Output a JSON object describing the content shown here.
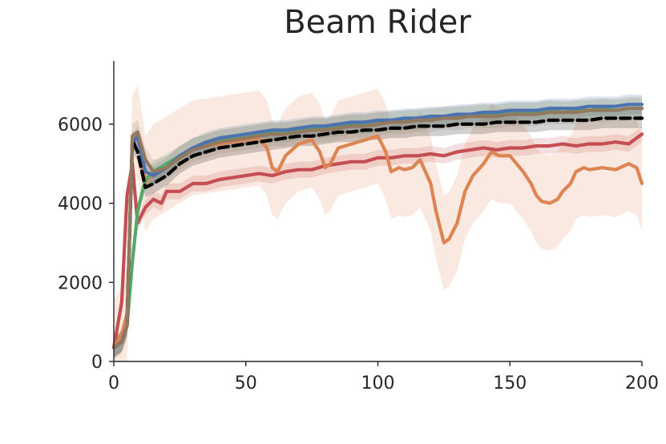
{
  "chart_data": {
    "type": "line",
    "title": "Beam Rider",
    "xlabel": "",
    "ylabel": "",
    "xlim": [
      0,
      200
    ],
    "ylim": [
      0,
      7600
    ],
    "x_ticks": [
      0,
      50,
      100,
      150,
      200
    ],
    "y_ticks": [
      0,
      2000,
      4000,
      6000
    ],
    "grid": false,
    "legend": "none",
    "series": [
      {
        "color": "#c44e52",
        "x": [
          0,
          3,
          5,
          7,
          9,
          12,
          15,
          18,
          20,
          25,
          30,
          35,
          40,
          45,
          50,
          55,
          60,
          65,
          70,
          75,
          80,
          85,
          90,
          95,
          100,
          105,
          110,
          115,
          120,
          125,
          130,
          135,
          140,
          145,
          150,
          155,
          160,
          165,
          170,
          175,
          180,
          185,
          190,
          195,
          200
        ],
        "y": [
          350,
          1500,
          4200,
          5000,
          3500,
          3900,
          4100,
          4000,
          4300,
          4300,
          4500,
          4500,
          4600,
          4650,
          4700,
          4750,
          4700,
          4800,
          4850,
          4850,
          4950,
          5000,
          5050,
          5050,
          5150,
          5150,
          5200,
          5200,
          5250,
          5200,
          5300,
          5350,
          5400,
          5350,
          5400,
          5400,
          5450,
          5450,
          5500,
          5450,
          5500,
          5500,
          5550,
          5500,
          5750
        ],
        "band": 200
      },
      {
        "color": "#dd8452",
        "x": [
          0,
          3,
          5,
          7,
          9,
          12,
          15,
          20,
          25,
          30,
          35,
          40,
          45,
          50,
          55,
          58,
          60,
          62,
          65,
          70,
          75,
          78,
          80,
          82,
          85,
          90,
          95,
          100,
          103,
          105,
          108,
          110,
          113,
          116,
          120,
          122,
          125,
          127,
          130,
          133,
          136,
          140,
          143,
          146,
          150,
          155,
          158,
          160,
          162,
          165,
          168,
          170,
          173,
          175,
          178,
          180,
          185,
          190,
          195,
          198,
          200
        ],
        "y": [
          350,
          700,
          1200,
          5500,
          5800,
          4500,
          4800,
          5000,
          5200,
          5400,
          5450,
          5500,
          5550,
          5600,
          5650,
          5400,
          4900,
          4800,
          5200,
          5500,
          5600,
          5300,
          4900,
          5000,
          5400,
          5500,
          5600,
          5700,
          5300,
          4800,
          4900,
          4850,
          4900,
          5100,
          4500,
          3800,
          3000,
          3100,
          3500,
          4300,
          4700,
          5000,
          5300,
          5200,
          5200,
          4800,
          4500,
          4200,
          4050,
          4000,
          4100,
          4300,
          4500,
          4800,
          4900,
          4850,
          4900,
          4850,
          5000,
          4900,
          4500
        ],
        "band": 1200
      },
      {
        "color": "#55a868",
        "x": [
          0,
          3,
          5,
          7,
          9,
          12,
          15,
          20,
          25,
          30,
          35,
          40,
          45,
          50,
          55,
          60,
          65,
          70,
          75,
          80,
          85,
          90,
          95,
          100,
          105,
          110,
          115,
          120,
          125,
          130,
          135,
          140,
          145,
          150,
          155,
          160,
          165,
          170,
          175,
          180,
          185,
          190,
          195,
          200
        ],
        "y": [
          350,
          500,
          900,
          2500,
          3800,
          4600,
          4800,
          5000,
          5200,
          5400,
          5500,
          5600,
          5650,
          5700,
          5750,
          5800,
          5800,
          5850,
          5900,
          5900,
          5950,
          6000,
          6000,
          6050,
          6050,
          6100,
          6100,
          6150,
          6150,
          6200,
          6200,
          6250,
          6250,
          6300,
          6300,
          6300,
          6350,
          6300,
          6350,
          6350,
          6400,
          6350,
          6400,
          6400
        ],
        "band": 250
      },
      {
        "color": "#4c72b0",
        "x": [
          0,
          3,
          5,
          7,
          9,
          12,
          15,
          20,
          25,
          30,
          35,
          40,
          45,
          50,
          55,
          60,
          65,
          70,
          75,
          80,
          85,
          90,
          95,
          100,
          105,
          110,
          115,
          120,
          125,
          130,
          135,
          140,
          145,
          150,
          155,
          160,
          165,
          170,
          175,
          180,
          185,
          190,
          195,
          200
        ],
        "y": [
          350,
          500,
          900,
          5500,
          5700,
          4800,
          4700,
          4900,
          5200,
          5400,
          5550,
          5650,
          5700,
          5750,
          5800,
          5850,
          5850,
          5900,
          5950,
          5950,
          6000,
          6050,
          6050,
          6100,
          6100,
          6150,
          6150,
          6200,
          6200,
          6250,
          6250,
          6300,
          6300,
          6350,
          6350,
          6350,
          6400,
          6400,
          6400,
          6450,
          6450,
          6450,
          6500,
          6500
        ],
        "band": 250
      },
      {
        "color": "#000000",
        "dashed": true,
        "x": [
          0,
          3,
          5,
          7,
          9,
          12,
          15,
          20,
          25,
          30,
          35,
          40,
          45,
          50,
          55,
          60,
          65,
          70,
          75,
          80,
          85,
          90,
          95,
          100,
          105,
          110,
          115,
          120,
          125,
          130,
          135,
          140,
          145,
          150,
          155,
          160,
          165,
          170,
          175,
          180,
          185,
          190,
          195,
          200
        ],
        "y": [
          350,
          500,
          900,
          5600,
          5300,
          4400,
          4500,
          4700,
          5000,
          5200,
          5300,
          5400,
          5450,
          5500,
          5550,
          5600,
          5650,
          5700,
          5700,
          5750,
          5800,
          5800,
          5850,
          5850,
          5900,
          5900,
          5950,
          5950,
          5950,
          6000,
          6000,
          6000,
          6050,
          6050,
          6050,
          6050,
          6100,
          6100,
          6100,
          6100,
          6150,
          6150,
          6150,
          6150
        ],
        "band": 250
      },
      {
        "color": "#937860",
        "x": [
          0,
          3,
          5,
          7,
          9,
          12,
          15,
          20,
          25,
          30,
          35,
          40,
          45,
          50,
          55,
          60,
          65,
          70,
          75,
          80,
          85,
          90,
          95,
          100,
          105,
          110,
          115,
          120,
          125,
          130,
          135,
          140,
          145,
          150,
          155,
          160,
          165,
          170,
          175,
          180,
          185,
          190,
          195,
          200
        ],
        "y": [
          350,
          500,
          900,
          5700,
          5800,
          5100,
          4800,
          4900,
          5150,
          5350,
          5450,
          5550,
          5600,
          5650,
          5700,
          5750,
          5750,
          5800,
          5850,
          5850,
          5900,
          5950,
          5950,
          6000,
          6050,
          6050,
          6100,
          6100,
          6150,
          6150,
          6200,
          6200,
          6200,
          6250,
          6250,
          6250,
          6300,
          6300,
          6300,
          6350,
          6350,
          6350,
          6400,
          6400
        ],
        "band": 300
      }
    ]
  }
}
